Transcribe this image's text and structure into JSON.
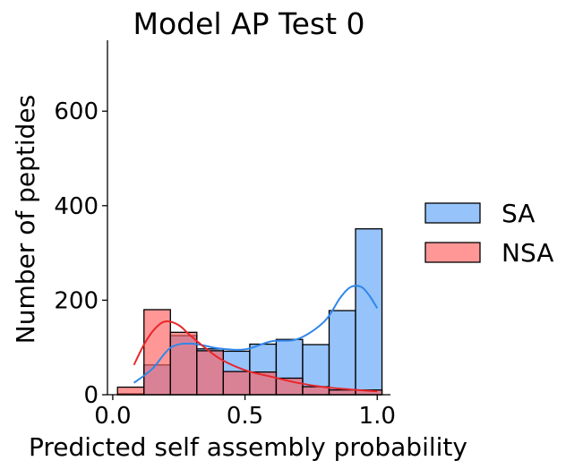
{
  "chart_data": {
    "type": "bar",
    "subtype": "overlaid-histogram-with-kde",
    "title": "Model AP Test 0",
    "xlabel": "Predicted self assembly probability",
    "ylabel": "Number of peptides",
    "xlim": [
      -0.02,
      1.05
    ],
    "ylim": [
      0,
      750
    ],
    "xticks": [
      0.0,
      0.5,
      1.0
    ],
    "xtick_labels": [
      "0.0",
      "0.5",
      "1.0"
    ],
    "yticks": [
      0,
      200,
      400,
      600
    ],
    "ytick_labels": [
      "0",
      "200",
      "400",
      "600"
    ],
    "grid": false,
    "legend_position": "right",
    "bin_edges": [
      0.018,
      0.118,
      0.218,
      0.318,
      0.418,
      0.518,
      0.618,
      0.718,
      0.818,
      0.918,
      1.018
    ],
    "series": [
      {
        "name": "SA",
        "color": "#5ea3f7",
        "line_color": "#2f87ea",
        "values": [
          2,
          63,
          125,
          97,
          92,
          107,
          117,
          106,
          178,
          351
        ],
        "kde_x": [
          0.08,
          0.15,
          0.22,
          0.3,
          0.4,
          0.5,
          0.6,
          0.7,
          0.8,
          0.86,
          0.9,
          0.94,
          0.97,
          1.0
        ],
        "kde_y": [
          25,
          55,
          100,
          108,
          98,
          96,
          113,
          118,
          155,
          205,
          228,
          228,
          210,
          183
        ]
      },
      {
        "name": "NSA",
        "color": "#ff5f5f",
        "line_color": "#e8262a",
        "values": [
          16,
          180,
          132,
          93,
          49,
          48,
          35,
          17,
          10,
          10
        ],
        "kde_x": [
          0.08,
          0.12,
          0.16,
          0.2,
          0.25,
          0.3,
          0.4,
          0.5,
          0.6,
          0.7,
          0.8,
          0.9,
          1.0
        ],
        "kde_y": [
          63,
          108,
          140,
          155,
          147,
          122,
          78,
          52,
          38,
          25,
          16,
          11,
          7
        ]
      }
    ]
  }
}
